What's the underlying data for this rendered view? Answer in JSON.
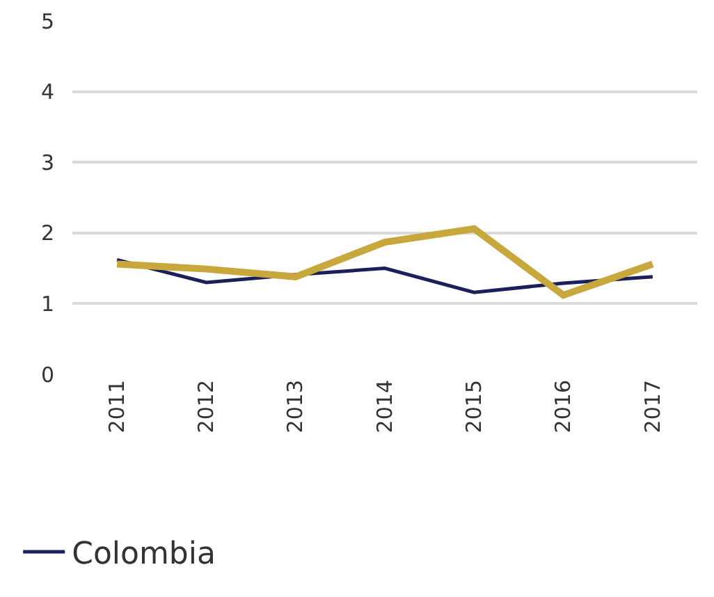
{
  "chart_data": {
    "type": "line",
    "categories": [
      "2011",
      "2012",
      "2013",
      "2014",
      "2015",
      "2016",
      "2017"
    ],
    "series": [
      {
        "name": "Colombia",
        "color": "#1b1f5c",
        "values": [
          1.62,
          1.3,
          1.41,
          1.5,
          1.16,
          1.29,
          1.38
        ]
      },
      {
        "color": "#c8a83c",
        "values": [
          1.56,
          1.49,
          1.38,
          1.87,
          2.06,
          1.12,
          1.56
        ]
      }
    ],
    "ylim": [
      0,
      5
    ],
    "yticks": [
      0,
      1,
      2,
      3,
      4,
      5
    ],
    "grid": "y",
    "legend": "bottom left",
    "line_style": "solid",
    "marker": "none"
  }
}
